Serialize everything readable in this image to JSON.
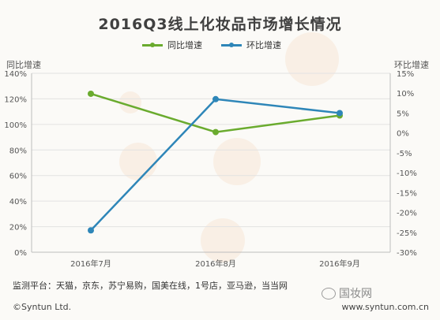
{
  "chart_data": {
    "type": "line",
    "title": "2016Q3线上化妆品市场增长情况",
    "categories": [
      "2016年7月",
      "2016年8月",
      "2016年9月"
    ],
    "left_axis_label": "同比增速",
    "right_axis_label": "环比增速",
    "left_ticks": [
      "0%",
      "20%",
      "40%",
      "60%",
      "80%",
      "100%",
      "120%",
      "140%"
    ],
    "right_ticks": [
      "-30%",
      "-25%",
      "-20%",
      "-15%",
      "-10%",
      "-5%",
      "0%",
      "5%",
      "10%",
      "15%"
    ],
    "left_ylim": [
      0,
      140
    ],
    "right_ylim": [
      -30,
      15
    ],
    "grid": true,
    "legend_position": "top-center",
    "series": [
      {
        "name": "同比增速",
        "axis": "left",
        "color": "#6aab2e",
        "values": [
          124,
          94,
          107
        ]
      },
      {
        "name": "环比增速",
        "axis": "right",
        "color": "#2e86b8",
        "values": [
          -24.5,
          8.5,
          5
        ]
      }
    ]
  },
  "footer": {
    "sources": "监测平台：天猫，京东，苏宁易购，国美在线，1号店，亚马逊，当当网",
    "copyright": "©Syntun Ltd.",
    "website": "www.syntun.com.cn",
    "watermark": "国妆网"
  }
}
